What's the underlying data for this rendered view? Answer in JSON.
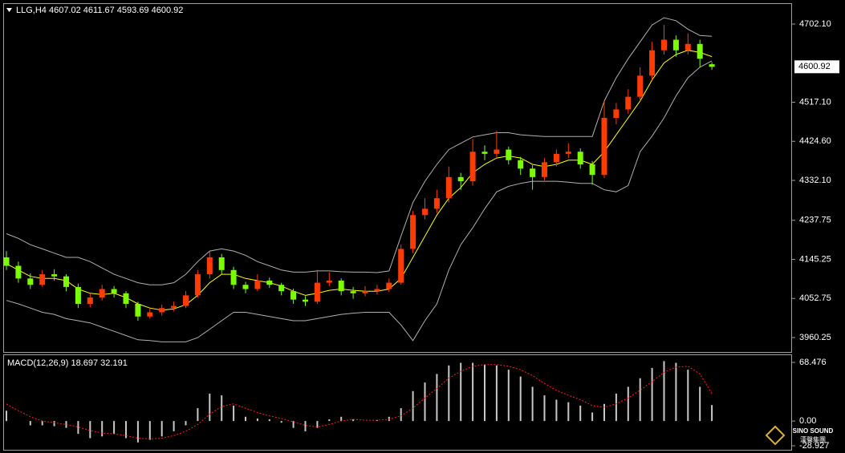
{
  "chart_data": [
    {
      "type": "candlestick",
      "title": "LLG,H4 4607.02 4611.67 4593.69 4600.92",
      "open": [
        4150,
        4130,
        4100,
        4085,
        4110,
        4105,
        4080,
        4040,
        4055,
        4075,
        4065,
        4040,
        4010,
        4020,
        4030,
        4035,
        4060,
        4110,
        4150,
        4120,
        4085,
        4075,
        4095,
        4085,
        4070,
        4050,
        4045,
        4090,
        4095,
        4070,
        4065,
        4070,
        4075,
        4090,
        4170,
        4250,
        4265,
        4290,
        4340,
        4330,
        4400,
        4395,
        4405,
        4380,
        4360,
        4340,
        4375,
        4395,
        4400,
        4370,
        4345,
        4480,
        4500,
        4530,
        4580,
        4640,
        4665,
        4640,
        4655,
        4607.02
      ],
      "high": [
        4165,
        4140,
        4112,
        4120,
        4122,
        4110,
        4088,
        4065,
        4085,
        4082,
        4070,
        4045,
        4030,
        4038,
        4045,
        4070,
        4120,
        4165,
        4158,
        4128,
        4092,
        4110,
        4102,
        4090,
        4076,
        4058,
        4120,
        4115,
        4100,
        4080,
        4082,
        4085,
        4100,
        4180,
        4260,
        4290,
        4310,
        4365,
        4350,
        4430,
        4415,
        4450,
        4412,
        4388,
        4368,
        4385,
        4405,
        4420,
        4408,
        4378,
        4520,
        4515,
        4548,
        4600,
        4660,
        4700,
        4675,
        4680,
        4665,
        4611.67
      ],
      "low": [
        4120,
        4090,
        4075,
        4080,
        4095,
        4070,
        4030,
        4032,
        4048,
        4055,
        4030,
        4000,
        4005,
        4012,
        4022,
        4030,
        4055,
        4100,
        4110,
        4075,
        4065,
        4070,
        4078,
        4060,
        4040,
        4035,
        4040,
        4082,
        4060,
        4052,
        4058,
        4062,
        4068,
        4085,
        4160,
        4240,
        4255,
        4280,
        4310,
        4320,
        4380,
        4385,
        4370,
        4345,
        4310,
        4332,
        4365,
        4385,
        4360,
        4322,
        4338,
        4465,
        4490,
        4520,
        4570,
        4630,
        4625,
        4630,
        4600,
        4593.69
      ],
      "close": [
        4130,
        4100,
        4085,
        4110,
        4105,
        4080,
        4040,
        4055,
        4075,
        4065,
        4040,
        4010,
        4020,
        4030,
        4035,
        4060,
        4110,
        4150,
        4120,
        4085,
        4075,
        4095,
        4085,
        4070,
        4050,
        4045,
        4090,
        4095,
        4070,
        4065,
        4070,
        4075,
        4090,
        4170,
        4250,
        4265,
        4290,
        4340,
        4330,
        4400,
        4395,
        4405,
        4380,
        4360,
        4340,
        4375,
        4395,
        4400,
        4370,
        4345,
        4480,
        4500,
        4530,
        4580,
        4640,
        4665,
        4640,
        4655,
        4620,
        4600.92
      ],
      "up_color": "#ff3b00",
      "down_color": "#7cfc00",
      "lines": [
        {
          "color": "#b0b0b0",
          "values": [
            4206,
            4195,
            4180,
            4170,
            4160,
            4150,
            4150,
            4140,
            4125,
            4110,
            4100,
            4090,
            4085,
            4085,
            4090,
            4110,
            4140,
            4165,
            4170,
            4165,
            4155,
            4140,
            4130,
            4120,
            4115,
            4115,
            4118,
            4118,
            4116,
            4115,
            4115,
            4114,
            4118,
            4200,
            4280,
            4330,
            4370,
            4405,
            4420,
            4435,
            4440,
            4445,
            4445,
            4440,
            4438,
            4436,
            4436,
            4436,
            4436,
            4436,
            4520,
            4575,
            4620,
            4660,
            4700,
            4717,
            4710,
            4690,
            4675,
            4673
          ]
        },
        {
          "color": "#b0b0b0",
          "values": [
            4048,
            4040,
            4030,
            4020,
            4015,
            4005,
            4000,
            3995,
            3985,
            3975,
            3965,
            3955,
            3953,
            3950,
            3950,
            3950,
            3960,
            3980,
            4000,
            4020,
            4020,
            4015,
            4010,
            4005,
            4000,
            4000,
            4005,
            4010,
            4015,
            4018,
            4020,
            4020,
            4020,
            3990,
            3953,
            4000,
            4040,
            4120,
            4180,
            4220,
            4265,
            4305,
            4318,
            4325,
            4330,
            4330,
            4330,
            4328,
            4325,
            4325,
            4310,
            4305,
            4320,
            4400,
            4437,
            4480,
            4532,
            4575,
            4600,
            4615
          ]
        },
        {
          "color": "#ffff00",
          "values": [
            4135,
            4120,
            4105,
            4100,
            4100,
            4095,
            4075,
            4065,
            4062,
            4065,
            4055,
            4040,
            4030,
            4025,
            4028,
            4038,
            4060,
            4090,
            4110,
            4110,
            4100,
            4095,
            4090,
            4082,
            4070,
            4060,
            4065,
            4072,
            4075,
            4072,
            4070,
            4070,
            4075,
            4100,
            4150,
            4200,
            4250,
            4290,
            4315,
            4350,
            4370,
            4385,
            4390,
            4385,
            4370,
            4365,
            4370,
            4380,
            4380,
            4370,
            4400,
            4440,
            4480,
            4520,
            4570,
            4610,
            4630,
            4640,
            4635,
            4625
          ]
        }
      ],
      "ylim": [
        3926.1,
        4751.4
      ],
      "yticks": [
        {
          "value": 4702.1,
          "label": "4702.10"
        },
        {
          "value": 4517.1,
          "label": "4517.10"
        },
        {
          "value": 4424.6,
          "label": "4424.60"
        },
        {
          "value": 4332.1,
          "label": "4332.10"
        },
        4237.75,
        4145.25,
        4052.75,
        3960.25
      ]
    },
    {
      "type": "macd",
      "title": "MACD(12,26,9) 18.697 32.191",
      "histogram": {
        "color": "#c8c8c8",
        "values": [
          12,
          0,
          -5,
          -5,
          -6,
          -8,
          -15,
          -20,
          -18,
          -15,
          -20,
          -25,
          -22,
          -18,
          -12,
          -5,
          15,
          32,
          30,
          18,
          5,
          3,
          2,
          -2,
          -8,
          -12,
          -8,
          2,
          5,
          2,
          0,
          1,
          5,
          15,
          35,
          45,
          55,
          65,
          68,
          68,
          66,
          65,
          60,
          52,
          40,
          30,
          25,
          22,
          18,
          10,
          20,
          32,
          40,
          50,
          62,
          70,
          68,
          60,
          40,
          18.697
        ]
      },
      "signal": {
        "color": "#ff2020",
        "values": [
          20,
          12,
          5,
          0,
          -2,
          -4,
          -7,
          -11,
          -14,
          -15,
          -17,
          -20,
          -21,
          -20,
          -17,
          -12,
          -4,
          8,
          17,
          20,
          15,
          10,
          6,
          3,
          -1,
          -5,
          -7,
          -4,
          0,
          2,
          1,
          1,
          2,
          6,
          15,
          27,
          38,
          50,
          58,
          64,
          66,
          66,
          64,
          60,
          53,
          44,
          36,
          30,
          25,
          18,
          16,
          20,
          27,
          36,
          46,
          57,
          63,
          64,
          55,
          32.191
        ]
      },
      "ylim": [
        -33.6,
        77.86
      ],
      "yticks": [
        68.476,
        {
          "value": 0,
          "label": "0.00"
        },
        -28.927
      ]
    }
  ],
  "logo": {
    "name": "SINO SOUND",
    "subtitle": "漢聲集團"
  }
}
